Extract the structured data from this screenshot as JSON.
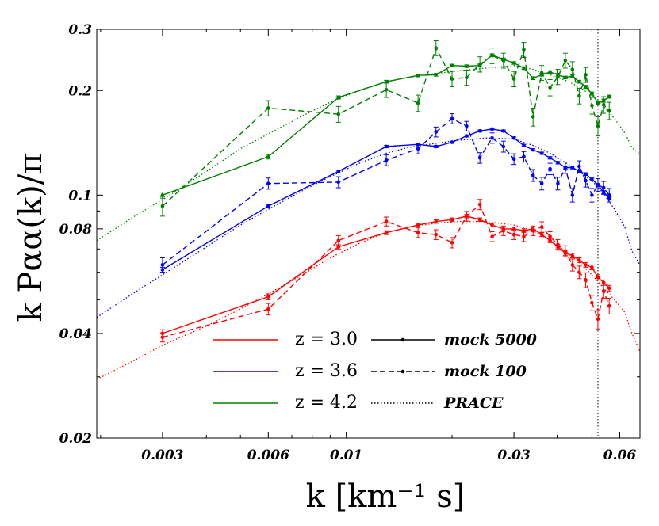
{
  "chart_data": {
    "type": "line",
    "title": "",
    "xlabel": "k [km⁻¹ s]",
    "ylabel": "k Pαα(k)/π",
    "xscale": "log",
    "yscale": "log",
    "xlim": [
      0.00195,
      0.0685
    ],
    "ylim": [
      0.02,
      0.3
    ],
    "x_ticks": [
      0.003,
      0.006,
      0.01,
      0.03,
      0.06
    ],
    "x_tick_labels": [
      "0.003",
      "0.006",
      "0.01",
      "0.03",
      "0.06"
    ],
    "y_ticks": [
      0.02,
      0.04,
      0.08,
      0.1,
      0.2,
      0.3
    ],
    "y_tick_labels": [
      "0.02",
      "0.04",
      "0.08",
      "0.1",
      "0.2",
      "0.3"
    ],
    "vline": 0.052,
    "legend_placement": "lower-center",
    "legend": {
      "colors": [
        {
          "label": "z = 3.0",
          "color": "#ff0000"
        },
        {
          "label": "z = 3.6",
          "color": "#0000ff"
        },
        {
          "label": "z = 4.2",
          "color": "#008000"
        }
      ],
      "styles": [
        {
          "label": "mock 5000",
          "dash": "solid"
        },
        {
          "label": "mock 100",
          "dash": "dashed"
        },
        {
          "label": "PRACE",
          "dash": "dotted"
        }
      ]
    },
    "groups": [
      {
        "z": 3.0,
        "color": "#ff0000",
        "mock5000": {
          "x": [
            0.003,
            0.006,
            0.0095,
            0.013,
            0.016,
            0.018,
            0.02,
            0.022,
            0.024,
            0.026,
            0.028,
            0.03,
            0.032,
            0.034,
            0.036,
            0.038,
            0.04,
            0.042,
            0.044,
            0.046,
            0.048,
            0.05,
            0.052,
            0.054,
            0.056
          ],
          "y": [
            0.04,
            0.051,
            0.071,
            0.078,
            0.082,
            0.084,
            0.085,
            0.087,
            0.085,
            0.082,
            0.08,
            0.08,
            0.079,
            0.08,
            0.077,
            0.074,
            0.071,
            0.068,
            0.067,
            0.065,
            0.063,
            0.062,
            0.058,
            0.056,
            0.054
          ],
          "err": [
            0.001,
            0.001,
            0.001,
            0.001,
            0.001,
            0.001,
            0.001,
            0.001,
            0.001,
            0.001,
            0.001,
            0.001,
            0.001,
            0.001,
            0.001,
            0.001,
            0.001,
            0.001,
            0.001,
            0.001,
            0.001,
            0.001,
            0.001,
            0.001,
            0.001
          ]
        },
        "mock100": {
          "x": [
            0.003,
            0.006,
            0.0095,
            0.013,
            0.016,
            0.018,
            0.02,
            0.022,
            0.024,
            0.026,
            0.028,
            0.03,
            0.032,
            0.034,
            0.036,
            0.038,
            0.04,
            0.042,
            0.044,
            0.046,
            0.048,
            0.05,
            0.052,
            0.054,
            0.056
          ],
          "y": [
            0.039,
            0.047,
            0.074,
            0.084,
            0.078,
            0.077,
            0.073,
            0.087,
            0.094,
            0.076,
            0.079,
            0.077,
            0.076,
            0.079,
            0.081,
            0.076,
            0.072,
            0.069,
            0.063,
            0.06,
            0.057,
            0.049,
            0.044,
            0.053,
            0.048
          ],
          "err": [
            0.0012,
            0.0018,
            0.0025,
            0.0025,
            0.0025,
            0.0025,
            0.0025,
            0.0028,
            0.0032,
            0.0025,
            0.0025,
            0.0025,
            0.0025,
            0.0025,
            0.0028,
            0.0025,
            0.0025,
            0.0025,
            0.0025,
            0.0025,
            0.0028,
            0.0025,
            0.0028,
            0.0025,
            0.0025
          ]
        },
        "prace": {
          "x": [
            0.00195,
            0.0025,
            0.003,
            0.004,
            0.005,
            0.006,
            0.0075,
            0.009,
            0.011,
            0.013,
            0.015,
            0.018,
            0.021,
            0.025,
            0.03,
            0.034,
            0.038,
            0.042,
            0.046,
            0.05,
            0.054,
            0.058,
            0.062,
            0.065,
            0.0685
          ],
          "y": [
            0.0295,
            0.0335,
            0.037,
            0.042,
            0.047,
            0.052,
            0.059,
            0.066,
            0.073,
            0.078,
            0.081,
            0.083,
            0.084,
            0.084,
            0.082,
            0.079,
            0.074,
            0.069,
            0.064,
            0.059,
            0.054,
            0.05,
            0.046,
            0.04,
            0.0355
          ]
        }
      },
      {
        "z": 3.6,
        "color": "#0000ff",
        "mock5000": {
          "x": [
            0.003,
            0.006,
            0.0095,
            0.013,
            0.016,
            0.018,
            0.02,
            0.022,
            0.024,
            0.026,
            0.028,
            0.03,
            0.032,
            0.034,
            0.036,
            0.038,
            0.04,
            0.042,
            0.044,
            0.046,
            0.048,
            0.05,
            0.052,
            0.054,
            0.056
          ],
          "y": [
            0.061,
            0.093,
            0.117,
            0.138,
            0.14,
            0.138,
            0.142,
            0.148,
            0.153,
            0.155,
            0.153,
            0.146,
            0.139,
            0.135,
            0.132,
            0.128,
            0.124,
            0.12,
            0.12,
            0.117,
            0.115,
            0.111,
            0.107,
            0.102,
            0.098
          ],
          "err": [
            0.001,
            0.001,
            0.001,
            0.001,
            0.001,
            0.001,
            0.001,
            0.001,
            0.001,
            0.001,
            0.001,
            0.001,
            0.001,
            0.001,
            0.001,
            0.001,
            0.001,
            0.001,
            0.001,
            0.001,
            0.001,
            0.001,
            0.001,
            0.001,
            0.001
          ]
        },
        "mock100": {
          "x": [
            0.003,
            0.006,
            0.0095,
            0.013,
            0.016,
            0.018,
            0.02,
            0.022,
            0.024,
            0.026,
            0.028,
            0.03,
            0.032,
            0.034,
            0.036,
            0.038,
            0.04,
            0.042,
            0.044,
            0.046,
            0.048,
            0.05,
            0.052,
            0.054,
            0.056
          ],
          "y": [
            0.063,
            0.108,
            0.109,
            0.126,
            0.136,
            0.152,
            0.166,
            0.158,
            0.128,
            0.146,
            0.138,
            0.127,
            0.129,
            0.114,
            0.108,
            0.119,
            0.108,
            0.12,
            0.1,
            0.121,
            0.11,
            0.1,
            0.107,
            0.105,
            0.1
          ],
          "err": [
            0.003,
            0.004,
            0.004,
            0.0045,
            0.0045,
            0.005,
            0.0055,
            0.005,
            0.0045,
            0.005,
            0.005,
            0.0045,
            0.0045,
            0.0045,
            0.0045,
            0.0045,
            0.0045,
            0.0045,
            0.0045,
            0.0045,
            0.0045,
            0.0045,
            0.0045,
            0.0045,
            0.0045
          ]
        },
        "prace": {
          "x": [
            0.00195,
            0.0025,
            0.003,
            0.004,
            0.005,
            0.006,
            0.0075,
            0.009,
            0.011,
            0.013,
            0.015,
            0.018,
            0.021,
            0.025,
            0.03,
            0.034,
            0.038,
            0.042,
            0.046,
            0.05,
            0.054,
            0.058,
            0.062,
            0.065,
            0.0685
          ],
          "y": [
            0.0445,
            0.0525,
            0.059,
            0.071,
            0.082,
            0.091,
            0.103,
            0.113,
            0.124,
            0.132,
            0.137,
            0.141,
            0.144,
            0.146,
            0.145,
            0.139,
            0.132,
            0.124,
            0.117,
            0.11,
            0.101,
            0.091,
            0.081,
            0.069,
            0.063
          ]
        }
      },
      {
        "z": 4.2,
        "color": "#008000",
        "mock5000": {
          "x": [
            0.003,
            0.006,
            0.0095,
            0.013,
            0.016,
            0.018,
            0.02,
            0.022,
            0.024,
            0.026,
            0.028,
            0.03,
            0.032,
            0.034,
            0.036,
            0.038,
            0.04,
            0.042,
            0.044,
            0.046,
            0.048,
            0.05,
            0.052,
            0.054,
            0.056
          ],
          "y": [
            0.1,
            0.129,
            0.191,
            0.212,
            0.221,
            0.222,
            0.236,
            0.235,
            0.236,
            0.253,
            0.246,
            0.24,
            0.232,
            0.217,
            0.222,
            0.226,
            0.222,
            0.218,
            0.22,
            0.212,
            0.205,
            0.196,
            0.184,
            0.187,
            0.192
          ],
          "err": [
            0.002,
            0.002,
            0.002,
            0.002,
            0.002,
            0.002,
            0.002,
            0.002,
            0.002,
            0.002,
            0.002,
            0.002,
            0.002,
            0.002,
            0.002,
            0.002,
            0.002,
            0.002,
            0.002,
            0.002,
            0.002,
            0.002,
            0.002,
            0.002,
            0.002
          ]
        },
        "mock100": {
          "x": [
            0.003,
            0.006,
            0.0095,
            0.013,
            0.016,
            0.018,
            0.02,
            0.022,
            0.024,
            0.026,
            0.028,
            0.03,
            0.032,
            0.034,
            0.036,
            0.038,
            0.04,
            0.042,
            0.044,
            0.046,
            0.048,
            0.05,
            0.052,
            0.054,
            0.056
          ],
          "y": [
            0.093,
            0.178,
            0.171,
            0.201,
            0.184,
            0.265,
            0.216,
            0.218,
            0.238,
            0.252,
            0.244,
            0.216,
            0.262,
            0.168,
            0.225,
            0.204,
            0.219,
            0.244,
            0.23,
            0.193,
            0.222,
            0.181,
            0.158,
            0.182,
            0.175
          ],
          "err": [
            0.006,
            0.009,
            0.009,
            0.01,
            0.01,
            0.013,
            0.011,
            0.011,
            0.012,
            0.013,
            0.012,
            0.011,
            0.013,
            0.01,
            0.011,
            0.011,
            0.011,
            0.012,
            0.012,
            0.01,
            0.011,
            0.01,
            0.01,
            0.01,
            0.01
          ]
        },
        "prace": {
          "x": [
            0.00195,
            0.0025,
            0.003,
            0.004,
            0.005,
            0.006,
            0.0075,
            0.009,
            0.011,
            0.013,
            0.015,
            0.018,
            0.021,
            0.025,
            0.03,
            0.034,
            0.038,
            0.042,
            0.046,
            0.05,
            0.054,
            0.058,
            0.062,
            0.065,
            0.0685
          ],
          "y": [
            0.074,
            0.087,
            0.097,
            0.117,
            0.136,
            0.15,
            0.169,
            0.185,
            0.201,
            0.212,
            0.218,
            0.224,
            0.228,
            0.232,
            0.236,
            0.23,
            0.222,
            0.214,
            0.205,
            0.193,
            0.18,
            0.166,
            0.151,
            0.137,
            0.131
          ]
        }
      }
    ]
  }
}
